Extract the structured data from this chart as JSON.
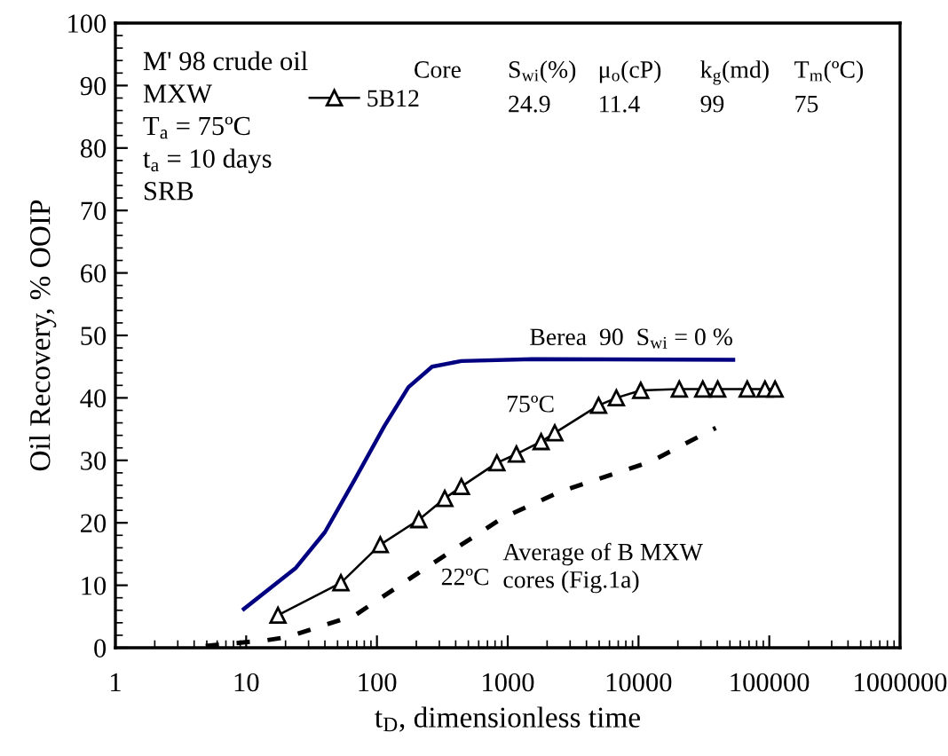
{
  "chart_data": {
    "type": "line",
    "xlabel": "t$_{D}$, dimensionless time",
    "ylabel": "Oil Recovery, % OOIP",
    "log": "x",
    "xlim": [
      1,
      1000000
    ],
    "xticks": [
      1,
      10,
      100,
      1000,
      10000,
      100000,
      1000000
    ],
    "ylim": [
      0,
      100
    ],
    "yticks": [
      0,
      10,
      20,
      30,
      40,
      50,
      60,
      70,
      80,
      90,
      100
    ],
    "grid": false,
    "legend": "top",
    "series": [
      {
        "name": "5B12",
        "color": "#000000",
        "marker": "triangle",
        "line_style": "solid",
        "x": [
          17.5,
          53,
          106,
          209,
          330,
          442,
          826,
          1165,
          1800,
          2290,
          4950,
          6770,
          10400,
          20500,
          31000,
          40300,
          67800,
          92700,
          110700
        ],
        "values": [
          5.2,
          10.4,
          16.5,
          20.5,
          23.9,
          25.8,
          29.6,
          31.0,
          33.0,
          34.4,
          38.8,
          40.0,
          41.2,
          41.4,
          41.4,
          41.4,
          41.4,
          41.4,
          41.4
        ]
      },
      {
        "name": "Berea  90  S$_{wi}$ = 0 %",
        "color": "#000080",
        "marker": "none",
        "line_style": "solid",
        "x": [
          9.6,
          24,
          40,
          68,
          114,
          174,
          264,
          442,
          1550,
          53000
        ],
        "values": [
          6.2,
          12.8,
          18.5,
          27,
          35.5,
          41.7,
          45,
          45.9,
          46.2,
          46.1
        ]
      },
      {
        "name": "Average of B MXW\ncores (Fig.1a)",
        "color": "#000000",
        "marker": "none",
        "line_style": "dashed",
        "x": [
          4.9,
          14.3,
          20.5,
          68,
          237,
          916,
          2600,
          12400,
          39000
        ],
        "values": [
          0.3,
          1.2,
          1.7,
          5.2,
          12.8,
          20.8,
          25.1,
          29.8,
          35.2
        ]
      }
    ],
    "annotations": [
      "M' 98 crude oil",
      "MXW",
      "T$_{a}$ = 75ºC",
      "t$_{a}$ = 10 days",
      "SRB",
      "Core",
      "S$_{wi}$(%)",
      "μ$_{o}$(cP)",
      "k$_{g}$(md)",
      "T$_{m}$(ºC)",
      "24.9",
      "11.4",
      "99",
      "75",
      "75ºC",
      "22ºC"
    ]
  }
}
